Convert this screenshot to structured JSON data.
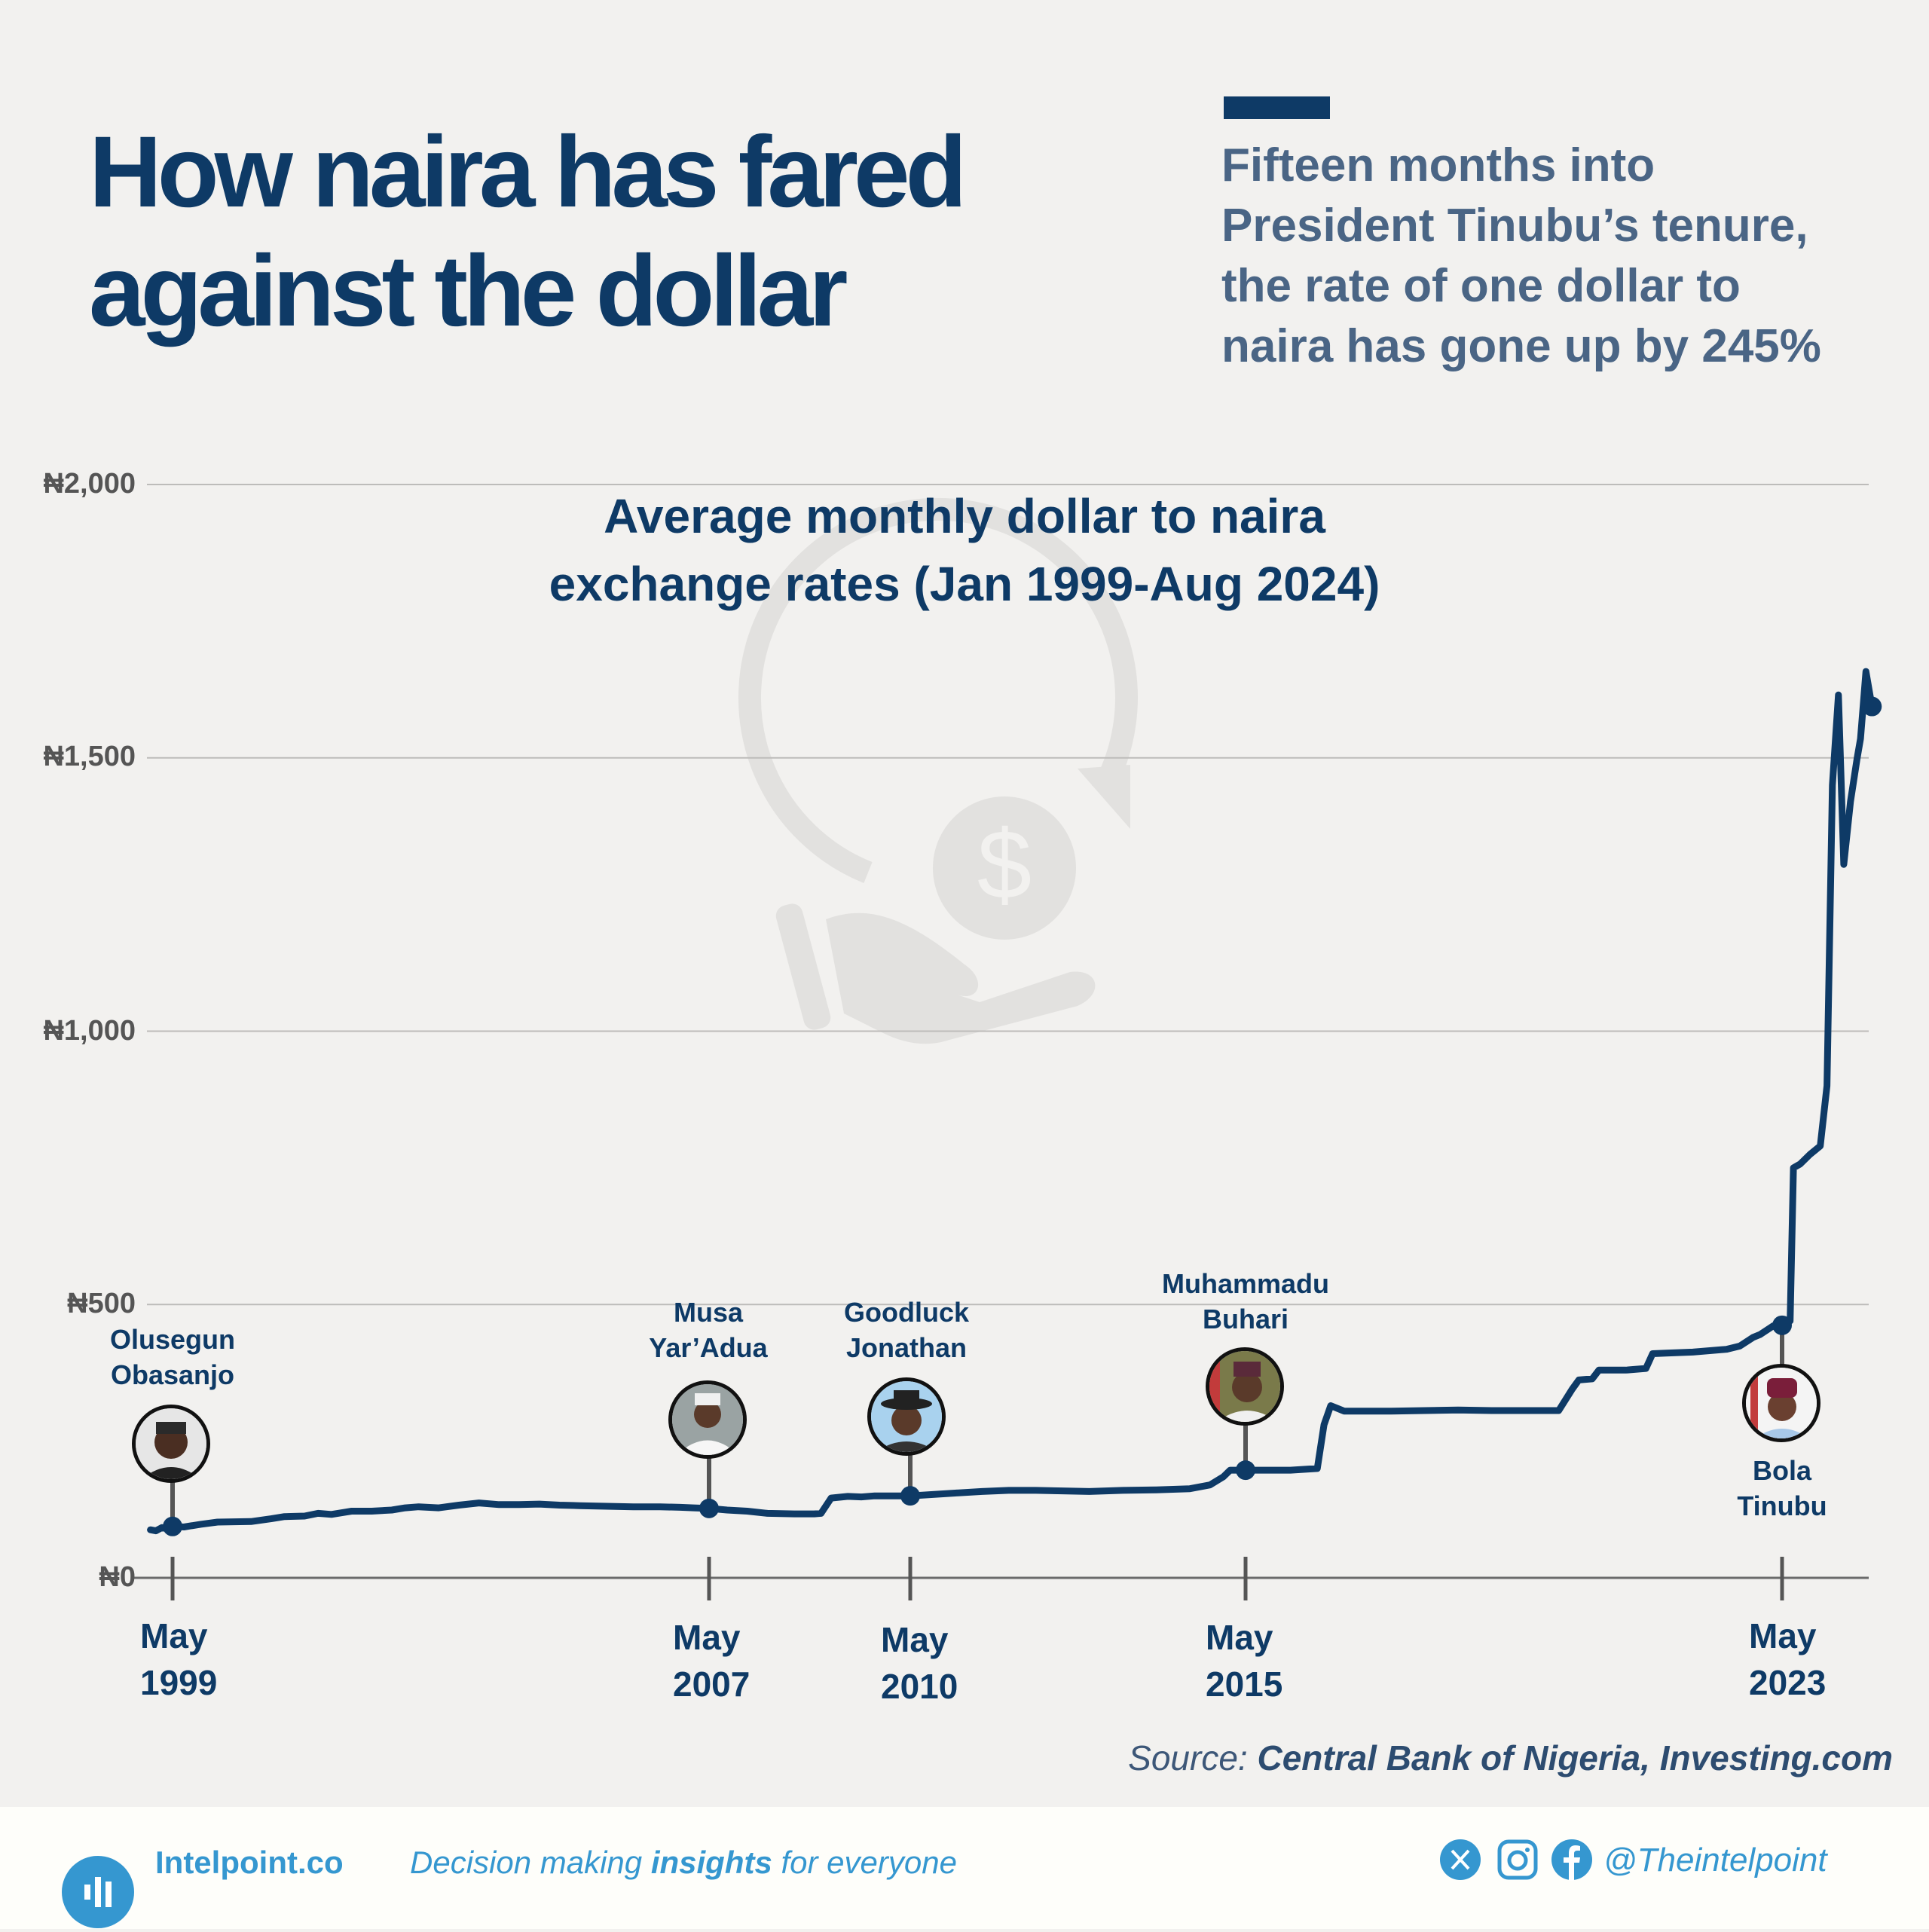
{
  "header": {
    "title_line1": "How naira has fared",
    "title_line2": "against the dollar",
    "subtitle_lines": [
      "Fifteen months into",
      "President Tinubu’s tenure,",
      "the rate of one dollar to",
      "naira has gone up by 245%"
    ],
    "accent_color": "#0e3a66"
  },
  "chart_data": {
    "type": "line",
    "title": "Average monthly dollar to naira exchange rates (Jan 1999-Aug 2024)",
    "title_lines": [
      "Average monthly dollar to naira",
      "exchange rates (Jan 1999-Aug 2024)"
    ],
    "xlabel": "",
    "ylabel": "",
    "ylim": [
      0,
      2000
    ],
    "yticks": [
      0,
      500,
      1000,
      1500,
      2000
    ],
    "ytick_labels": [
      "₦0",
      "₦500",
      "₦1,000",
      "₦1,500",
      "₦2,000"
    ],
    "grid": true,
    "line_color": "#0e3a66",
    "xtick_labels": [
      {
        "month": "May",
        "year": "1999",
        "t": 1999.33
      },
      {
        "month": "May",
        "year": "2007",
        "t": 2007.33
      },
      {
        "month": "May",
        "year": "2010",
        "t": 2010.33
      },
      {
        "month": "May",
        "year": "2015",
        "t": 2015.33
      },
      {
        "month": "May",
        "year": "2023",
        "t": 2023.33
      }
    ],
    "series": [
      {
        "name": "USD/NGN average monthly rate",
        "x": [
          1999.0,
          1999.08,
          1999.17,
          1999.25,
          1999.33,
          1999.5,
          1999.75,
          2000.0,
          2000.5,
          2000.8,
          2001.0,
          2001.3,
          2001.5,
          2001.7,
          2001.9,
          2002.0,
          2002.3,
          2002.6,
          2002.8,
          2003.0,
          2003.3,
          2003.6,
          2003.9,
          2004.2,
          2004.5,
          2004.8,
          2005.1,
          2005.4,
          2005.8,
          2006.2,
          2006.6,
          2006.9,
          2007.1,
          2007.33,
          2007.6,
          2007.9,
          2008.2,
          2008.6,
          2008.9,
          2009.0,
          2009.15,
          2009.4,
          2009.6,
          2009.8,
          2010.0,
          2010.33,
          2010.6,
          2011.0,
          2011.4,
          2011.8,
          2012.2,
          2012.6,
          2013.0,
          2013.5,
          2014.0,
          2014.5,
          2014.8,
          2015.0,
          2015.1,
          2015.33,
          2015.6,
          2016.0,
          2016.4,
          2016.5,
          2016.6,
          2016.8,
          2017.0,
          2017.5,
          2018.0,
          2018.5,
          2019.0,
          2019.5,
          2020.0,
          2020.2,
          2020.3,
          2020.5,
          2020.6,
          2020.7,
          2021.0,
          2021.3,
          2021.4,
          2021.6,
          2022.0,
          2022.5,
          2022.7,
          2022.9,
          2023.0,
          2023.2,
          2023.33,
          2023.45,
          2023.5,
          2023.6,
          2023.75,
          2023.9,
          2024.0,
          2024.08,
          2024.17,
          2024.25,
          2024.35,
          2024.45,
          2024.5,
          2024.58,
          2024.67
        ],
        "y": [
          88,
          86,
          92,
          90,
          94,
          93,
          98,
          102,
          103,
          108,
          112,
          113,
          118,
          116,
          120,
          122,
          122,
          124,
          128,
          130,
          128,
          133,
          137,
          134,
          134,
          135,
          133,
          132,
          131,
          130,
          130,
          129,
          128,
          127,
          124,
          122,
          118,
          117,
          117,
          118,
          146,
          149,
          148,
          150,
          150,
          150,
          152,
          155,
          158,
          160,
          160,
          159,
          158,
          160,
          161,
          163,
          170,
          185,
          197,
          197,
          197,
          197,
          200,
          280,
          315,
          305,
          305,
          305,
          306,
          307,
          306,
          306,
          306,
          345,
          362,
          364,
          380,
          380,
          380,
          383,
          410,
          411,
          413,
          418,
          424,
          440,
          445,
          461,
          462,
          470,
          750,
          757,
          775,
          790,
          900,
          1450,
          1615,
          1305,
          1420,
          1500,
          1535,
          1658,
          1594
        ]
      }
    ],
    "annotations": [
      {
        "name_lines": [
          "Olusegun",
          "Obasanjo"
        ],
        "t": 1999.33,
        "value": 94,
        "label_position": "above"
      },
      {
        "name_lines": [
          "Musa",
          "Yar’Adua"
        ],
        "t": 2007.33,
        "value": 127,
        "label_position": "above"
      },
      {
        "name_lines": [
          "Goodluck",
          "Jonathan"
        ],
        "t": 2010.33,
        "value": 150,
        "label_position": "above"
      },
      {
        "name_lines": [
          "Muhammadu",
          "Buhari"
        ],
        "t": 2015.33,
        "value": 197,
        "label_position": "above"
      },
      {
        "name_lines": [
          "Bola",
          "Tinubu"
        ],
        "t": 2023.33,
        "value": 462,
        "label_position": "below"
      }
    ]
  },
  "source": {
    "prefix": "Source:",
    "text": "Central Bank of Nigeria, Investing.com"
  },
  "footer": {
    "brand": "Intelpoint.co",
    "tagline_pre": "Decision making ",
    "tagline_bold": "insights",
    "tagline_post": " for everyone",
    "social_icons": [
      "x-icon",
      "instagram-icon",
      "facebook-icon"
    ],
    "handle": "@Theintelpoint",
    "brand_color": "#3597d0"
  }
}
